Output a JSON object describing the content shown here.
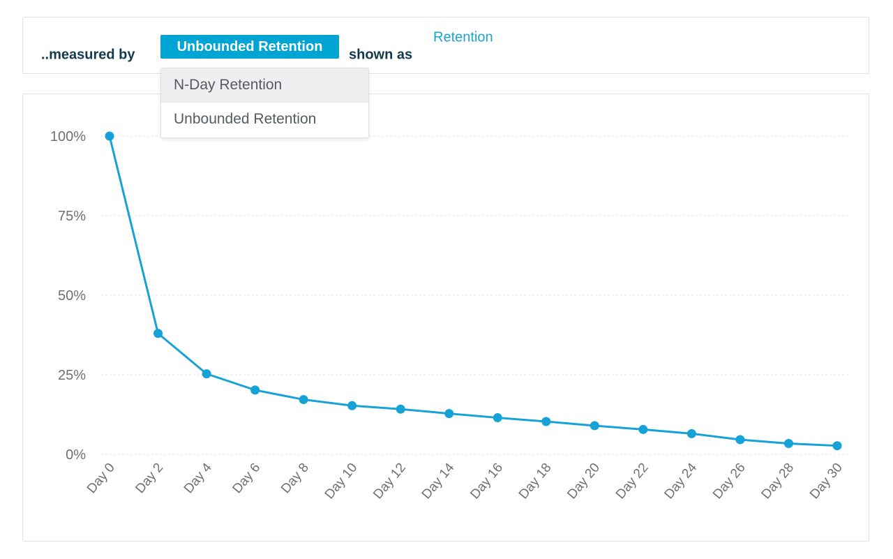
{
  "query": {
    "prefix": "..measured by",
    "measure_selected": "Unbounded Retention",
    "middle": "shown as",
    "shown_as": "Retention"
  },
  "dropdown": {
    "options": [
      "N-Day Retention",
      "Unbounded Retention"
    ]
  },
  "colors": {
    "accent": "#00a5d4",
    "series_line": "#16a2d6",
    "text_dark": "#123a4c",
    "axis_text": "#707070",
    "grid": "#e6e6e6"
  },
  "chart_data": {
    "type": "line",
    "title": "",
    "xlabel": "",
    "ylabel": "",
    "categories": [
      "Day 0",
      "Day 2",
      "Day 4",
      "Day 6",
      "Day 8",
      "Day 10",
      "Day 12",
      "Day 14",
      "Day 16",
      "Day 18",
      "Day 20",
      "Day 22",
      "Day 24",
      "Day 26",
      "Day 28",
      "Day 30"
    ],
    "series": [
      {
        "name": "Retention",
        "values": [
          100,
          38,
          25.3,
          20.2,
          17.2,
          15.3,
          14.2,
          12.8,
          11.5,
          10.3,
          9,
          7.8,
          6.5,
          4.6,
          3.4,
          2.7
        ]
      }
    ],
    "ylim": [
      0,
      100
    ],
    "yticks": [
      0,
      25,
      50,
      75,
      100
    ],
    "ytick_labels": [
      "0%",
      "25%",
      "50%",
      "75%",
      "100%"
    ],
    "grid": true,
    "grid_style": "dashed"
  }
}
